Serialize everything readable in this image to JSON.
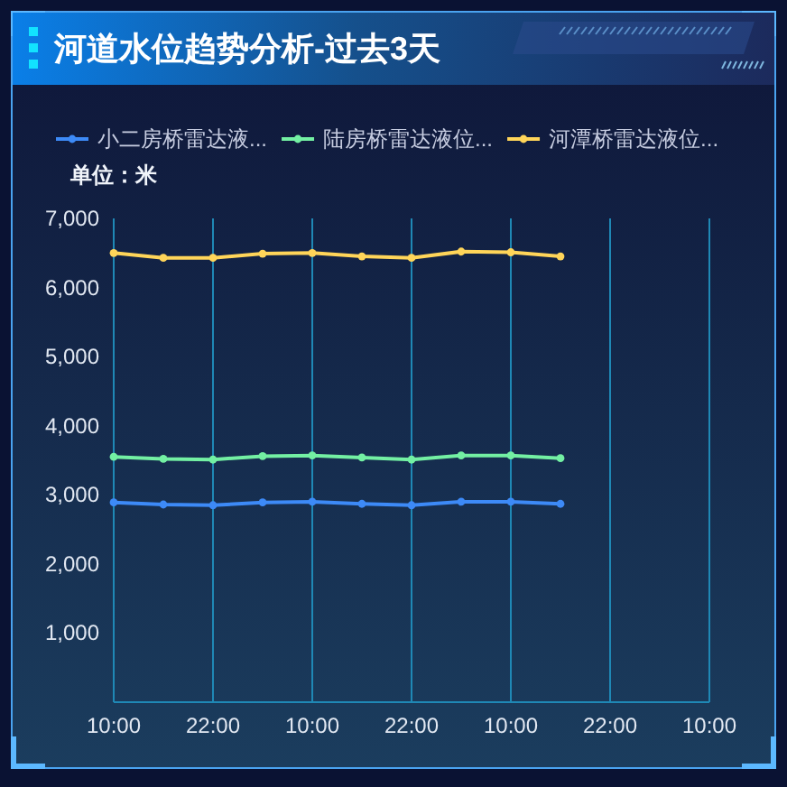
{
  "chart_data": {
    "type": "line",
    "title": "河道水位趋势分析-过去3天",
    "ylabel": "单位：米",
    "x": [
      "--01-01T10:00",
      "--01-01T16:00",
      "--01-01T22:00",
      "--01-02T04:00",
      "--01-02T10:00",
      "--01-02T16:00",
      "--01-02T22:00",
      "--01-03T04:00",
      "--01-03T10:00",
      "--01-03T16:00"
    ],
    "xlim": [
      "--01-01T10:00",
      "--01-04T10:00"
    ],
    "xticks": [
      {
        "value": "--01-01T10:00",
        "label": "10:00"
      },
      {
        "value": "--01-01T22:00",
        "label": "22:00"
      },
      {
        "value": "--01-02T10:00",
        "label": "10:00"
      },
      {
        "value": "--01-02T22:00",
        "label": "22:00"
      },
      {
        "value": "--01-03T10:00",
        "label": "10:00"
      },
      {
        "value": "--01-03T22:00",
        "label": "22:00"
      },
      {
        "value": "--01-04T10:00",
        "label": "10:00"
      }
    ],
    "ylim": [
      0,
      7000
    ],
    "yticks": [
      {
        "value": 1000,
        "label": "1,000"
      },
      {
        "value": 2000,
        "label": "2,000"
      },
      {
        "value": 3000,
        "label": "3,000"
      },
      {
        "value": 4000,
        "label": "4,000"
      },
      {
        "value": 5000,
        "label": "5,000"
      },
      {
        "value": 6000,
        "label": "6,000"
      },
      {
        "value": 7000,
        "label": "7,000"
      }
    ],
    "series": [
      {
        "name": "小二房桥雷达液...",
        "color": "#3d8af7",
        "values": [
          2890,
          2860,
          2850,
          2890,
          2900,
          2870,
          2850,
          2900,
          2900,
          2870
        ]
      },
      {
        "name": "陆房桥雷达液位...",
        "color": "#73f0a3",
        "values": [
          3550,
          3520,
          3510,
          3560,
          3570,
          3540,
          3510,
          3570,
          3570,
          3530
        ]
      },
      {
        "name": "河潭桥雷达液位...",
        "color": "#ffd559",
        "values": [
          6500,
          6430,
          6430,
          6490,
          6500,
          6450,
          6430,
          6520,
          6510,
          6450
        ]
      }
    ],
    "grid": "x",
    "legend": "top left",
    "marker": "circle",
    "line_style": "solid"
  }
}
